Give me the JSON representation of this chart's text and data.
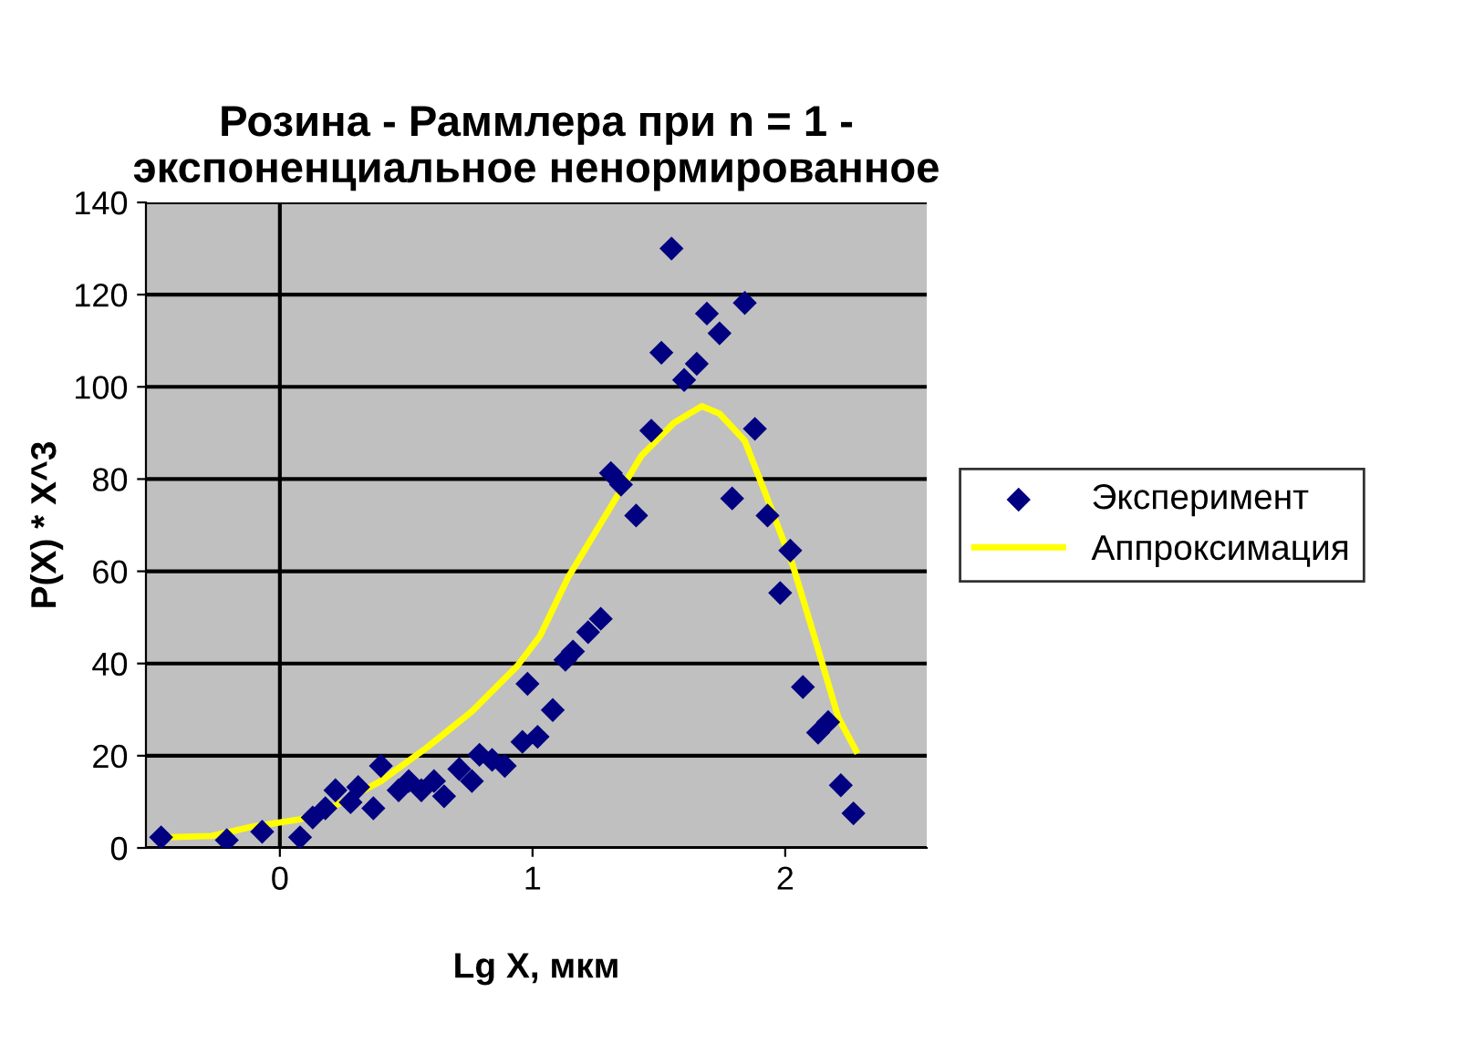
{
  "chart_data": {
    "type": "scatter",
    "title": "Розина - Раммлера при n = 1 -\nэкспоненциальное ненормированное",
    "xlabel": "Lg X, мкм",
    "ylabel": "P(X) * X^3",
    "xlim": [
      -0.53,
      2.56
    ],
    "xticks": [
      0,
      1,
      2
    ],
    "ylim": [
      0,
      140
    ],
    "yticks": [
      0,
      20,
      40,
      60,
      80,
      100,
      120,
      140
    ],
    "grid": "y",
    "legend": "right",
    "ref_lines": [
      {
        "axis": "x",
        "value": 0,
        "label": null,
        "color": "#000000"
      }
    ],
    "series": [
      {
        "name": "Эксперимент",
        "color": "#000080",
        "marker": "diamond",
        "x": [
          -0.47,
          -0.21,
          -0.07,
          0.08,
          0.13,
          0.18,
          0.22,
          0.28,
          0.31,
          0.37,
          0.4,
          0.47,
          0.51,
          0.56,
          0.61,
          0.65,
          0.71,
          0.76,
          0.79,
          0.84,
          0.89,
          0.96,
          0.98,
          1.02,
          1.08,
          1.13,
          1.16,
          1.22,
          1.27,
          1.31,
          1.35,
          1.41,
          1.47,
          1.51,
          1.55,
          1.6,
          1.65,
          1.69,
          1.74,
          1.79,
          1.84,
          1.88,
          1.93,
          1.98,
          2.02,
          2.07,
          2.13,
          2.17,
          2.22,
          2.27
        ],
        "values": [
          2.3,
          1.7,
          3.5,
          2.3,
          6.6,
          8.6,
          12.5,
          9.9,
          13.2,
          8.6,
          17.8,
          12.5,
          14.5,
          12.5,
          14.5,
          11.2,
          17.1,
          14.5,
          20.2,
          19.1,
          17.8,
          23.0,
          35.6,
          24.1,
          29.9,
          40.8,
          42.6,
          46.8,
          49.7,
          81.3,
          78.8,
          72.1,
          90.5,
          107.4,
          130.0,
          101.5,
          105.0,
          115.9,
          111.6,
          75.8,
          118.2,
          90.9,
          72.1,
          55.3,
          64.5,
          34.9,
          25.0,
          27.3,
          13.6,
          7.5
        ]
      },
      {
        "name": "Аппроксимация",
        "type": "line",
        "color": "#ffff00",
        "marker": "none",
        "line_style": "solid",
        "x": [
          -0.47,
          -0.27,
          -0.11,
          0.08,
          0.22,
          0.4,
          0.58,
          0.76,
          0.94,
          1.03,
          1.14,
          1.3,
          1.43,
          1.56,
          1.67,
          1.74,
          1.84,
          1.92,
          2.03,
          2.11,
          2.21,
          2.28
        ],
        "values": [
          2.3,
          2.6,
          4.6,
          6.2,
          9.2,
          14.5,
          21.7,
          29.6,
          39.5,
          46.0,
          58.6,
          73.1,
          85.0,
          92.2,
          95.8,
          94.2,
          88.3,
          77.1,
          61.3,
          46.8,
          28.3,
          21.1
        ]
      }
    ]
  }
}
